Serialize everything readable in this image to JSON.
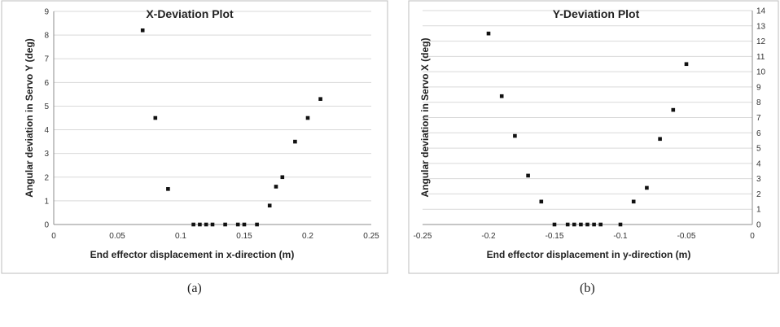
{
  "captions": {
    "a": "(a)",
    "b": "(b)"
  },
  "footer_text": "",
  "chart_data": [
    {
      "type": "scatter",
      "title": "X-Deviation Plot",
      "xlabel": "End effector displacement in x-direction (m)",
      "ylabel": "Angular deviation in Servo Y (deg)",
      "xlim": [
        0,
        0.25
      ],
      "ylim": [
        0,
        9
      ],
      "xticks": [
        0,
        0.05,
        0.1,
        0.15,
        0.2,
        0.25
      ],
      "xtick_labels": [
        "0",
        "0.05",
        "0.1",
        "0.15",
        "0.2",
        "0.25"
      ],
      "yticks": [
        0,
        1,
        2,
        3,
        4,
        5,
        6,
        7,
        8,
        9
      ],
      "ytick_labels": [
        "0",
        "1",
        "2",
        "3",
        "4",
        "5",
        "6",
        "7",
        "8",
        "9"
      ],
      "y_axis_side": "left",
      "grid": "horizontal",
      "series": [
        {
          "points": [
            [
              0.07,
              8.2
            ],
            [
              0.08,
              4.5
            ],
            [
              0.09,
              1.5
            ],
            [
              0.11,
              0
            ],
            [
              0.115,
              0
            ],
            [
              0.12,
              0
            ],
            [
              0.125,
              0
            ],
            [
              0.135,
              0
            ],
            [
              0.145,
              0
            ],
            [
              0.15,
              0
            ],
            [
              0.16,
              0
            ],
            [
              0.17,
              0.8
            ],
            [
              0.175,
              1.6
            ],
            [
              0.18,
              2.0
            ],
            [
              0.19,
              3.5
            ],
            [
              0.2,
              4.5
            ],
            [
              0.21,
              5.3
            ]
          ]
        }
      ]
    },
    {
      "type": "scatter",
      "title": "Y-Deviation Plot",
      "xlabel": "End effector displacement in y-direction (m)",
      "ylabel": "Angular deviation in Servo X (deg)",
      "xlim": [
        -0.25,
        0
      ],
      "ylim": [
        0,
        14
      ],
      "xticks": [
        -0.25,
        -0.2,
        -0.15,
        -0.1,
        -0.05,
        0
      ],
      "xtick_labels": [
        "-0.25",
        "-0.2",
        "-0.15",
        "-0.1",
        "-0.05",
        "0"
      ],
      "yticks": [
        0,
        1,
        2,
        3,
        4,
        5,
        6,
        7,
        8,
        9,
        10,
        11,
        12,
        13,
        14
      ],
      "ytick_labels": [
        "0",
        "1",
        "2",
        "3",
        "4",
        "5",
        "6",
        "7",
        "8",
        "9",
        "10",
        "11",
        "12",
        "13",
        "14"
      ],
      "y_axis_side": "right",
      "grid": "horizontal",
      "series": [
        {
          "points": [
            [
              -0.2,
              12.5
            ],
            [
              -0.19,
              8.4
            ],
            [
              -0.18,
              5.8
            ],
            [
              -0.17,
              3.2
            ],
            [
              -0.16,
              1.5
            ],
            [
              -0.15,
              0
            ],
            [
              -0.14,
              0
            ],
            [
              -0.135,
              0
            ],
            [
              -0.13,
              0
            ],
            [
              -0.125,
              0
            ],
            [
              -0.12,
              0
            ],
            [
              -0.115,
              0
            ],
            [
              -0.1,
              0
            ],
            [
              -0.09,
              1.5
            ],
            [
              -0.08,
              2.4
            ],
            [
              -0.07,
              5.6
            ],
            [
              -0.06,
              7.5
            ],
            [
              -0.05,
              10.5
            ]
          ]
        }
      ]
    }
  ]
}
